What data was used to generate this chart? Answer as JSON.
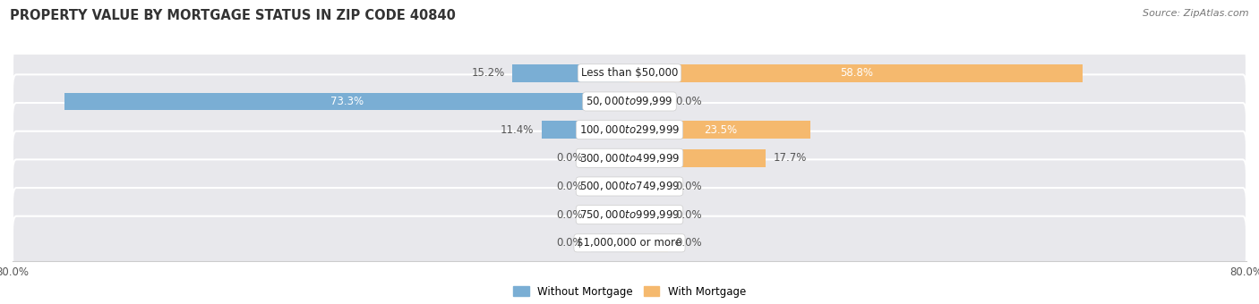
{
  "title": "PROPERTY VALUE BY MORTGAGE STATUS IN ZIP CODE 40840",
  "source": "Source: ZipAtlas.com",
  "categories": [
    "Less than $50,000",
    "$50,000 to $99,999",
    "$100,000 to $299,999",
    "$300,000 to $499,999",
    "$500,000 to $749,999",
    "$750,000 to $999,999",
    "$1,000,000 or more"
  ],
  "without_mortgage": [
    15.2,
    73.3,
    11.4,
    0.0,
    0.0,
    0.0,
    0.0
  ],
  "with_mortgage": [
    58.8,
    0.0,
    23.5,
    17.7,
    0.0,
    0.0,
    0.0
  ],
  "blue_color": "#7aaed4",
  "blue_stub": "#aac8e0",
  "orange_color": "#f5b96e",
  "orange_stub": "#f5d0a0",
  "bar_bg_color": "#e8e8ec",
  "label_color_outside_dark": "#555555",
  "xlim": [
    -80,
    80
  ],
  "axis_label_left": "80.0%",
  "axis_label_right": "80.0%",
  "legend_without": "Without Mortgage",
  "legend_with": "With Mortgage",
  "title_fontsize": 10.5,
  "source_fontsize": 8,
  "bar_height": 0.62,
  "label_fontsize": 8.5,
  "cat_fontsize": 8.5,
  "min_stub": 5.0
}
